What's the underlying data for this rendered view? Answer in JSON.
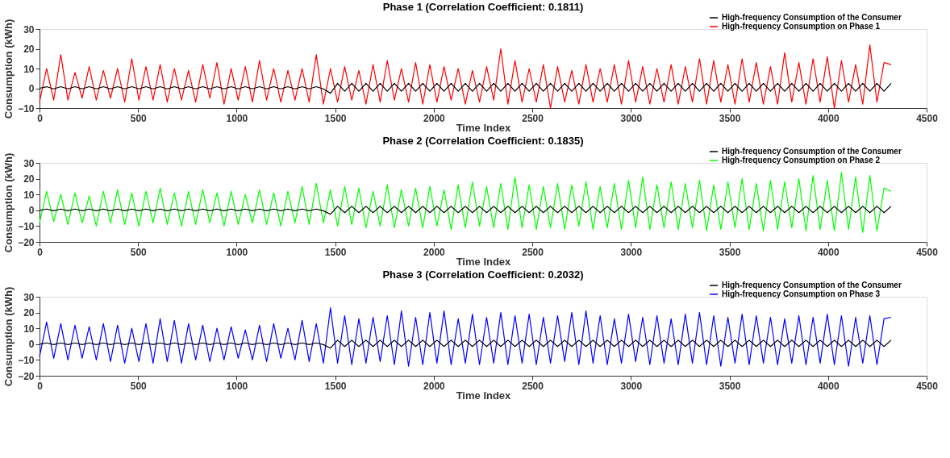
{
  "chart_data": [
    {
      "type": "line",
      "title": "Phase 1 (Correlation Coefficient: 0.1811)",
      "xlabel": "Time Index",
      "ylabel": "Consumption (kWh)",
      "legend": "top right",
      "grid": false,
      "xlim": [
        0,
        4500
      ],
      "xticks": [
        0,
        500,
        1000,
        1500,
        2000,
        2500,
        3000,
        3500,
        4000,
        4500
      ],
      "ylim": [
        -10,
        30
      ],
      "yticks": [
        -10,
        0,
        10,
        20,
        30
      ],
      "x": [
        0,
        36,
        72,
        108,
        144,
        180,
        216,
        252,
        288,
        324,
        360,
        396,
        432,
        468,
        504,
        540,
        576,
        612,
        648,
        684,
        720,
        756,
        792,
        828,
        864,
        900,
        936,
        972,
        1008,
        1044,
        1080,
        1116,
        1152,
        1188,
        1224,
        1260,
        1296,
        1332,
        1368,
        1404,
        1440,
        1476,
        1512,
        1548,
        1584,
        1620,
        1656,
        1692,
        1728,
        1764,
        1800,
        1836,
        1872,
        1908,
        1944,
        1980,
        2016,
        2052,
        2088,
        2124,
        2160,
        2196,
        2232,
        2268,
        2304,
        2340,
        2376,
        2412,
        2448,
        2484,
        2520,
        2556,
        2592,
        2628,
        2664,
        2700,
        2736,
        2772,
        2808,
        2844,
        2880,
        2916,
        2952,
        2988,
        3024,
        3060,
        3096,
        3132,
        3168,
        3204,
        3240,
        3276,
        3312,
        3348,
        3384,
        3420,
        3456,
        3492,
        3528,
        3564,
        3600,
        3636,
        3672,
        3708,
        3744,
        3780,
        3816,
        3852,
        3888,
        3924,
        3960,
        3996,
        4032,
        4068,
        4104,
        4140,
        4176,
        4212,
        4248,
        4284,
        4320
      ],
      "series": [
        {
          "name": "High-frequency Consumption of the Consumer",
          "color": "#000000",
          "values": [
            0,
            0.8,
            -0.3,
            0.8,
            -0.3,
            0.8,
            -0.3,
            0.8,
            -0.3,
            0.8,
            -0.3,
            0.8,
            -0.3,
            0.8,
            -0.3,
            0.8,
            -0.3,
            0.8,
            -0.3,
            0.8,
            -0.3,
            0.8,
            -0.3,
            0.8,
            -0.3,
            0.8,
            -0.3,
            0.8,
            -0.3,
            0.8,
            -0.3,
            0.8,
            -0.3,
            0.8,
            -0.3,
            0.8,
            -0.3,
            0.8,
            -0.3,
            0.8,
            -0.3,
            -2.5,
            2.5,
            -1.5,
            2.5,
            -1.5,
            2.5,
            -1.5,
            2.5,
            -1.5,
            2.5,
            -1.5,
            2.5,
            -1.5,
            2.5,
            -1.5,
            2.5,
            -1.5,
            2.5,
            -1.5,
            2.5,
            -1.5,
            2.5,
            -1.5,
            2.5,
            -1.5,
            2.5,
            -1.5,
            2.5,
            -1.5,
            2.5,
            -1.5,
            2.5,
            -1.5,
            2.5,
            -1.5,
            2.5,
            -1.5,
            2.5,
            -1.5,
            2.5,
            -1.5,
            2.5,
            -1.5,
            2.5,
            -1.5,
            2.5,
            -1.5,
            2.5,
            -1.5,
            2.5,
            -1.5,
            2.5,
            -1.5,
            2.5,
            -1.5,
            2.5,
            -1.5,
            2.5,
            -1.5,
            2.5,
            -1.5,
            2.5,
            -1.5,
            2.5,
            -1.5,
            2.5,
            -1.5,
            2.5,
            -1.5,
            2.5,
            -1.5,
            2.5,
            -1.5,
            2.5,
            -1.5,
            2.5,
            -1.5,
            2.5,
            -1.5,
            2.5
          ]
        },
        {
          "name": "High-frequency Consumption on Phase 1",
          "color": "#ff0000",
          "values": [
            -7,
            10,
            -6,
            17,
            -6,
            8,
            -5,
            11,
            -6,
            9,
            -5,
            10,
            -7,
            15,
            -6,
            11,
            -6,
            12,
            -7,
            10,
            -6,
            9,
            -7,
            12,
            -5,
            13,
            -8,
            10,
            -6,
            11,
            -7,
            14,
            -6,
            10,
            -7,
            9,
            -6,
            10,
            -7,
            17,
            -8,
            10,
            -7,
            11,
            -6,
            9,
            -8,
            12,
            -7,
            14,
            -6,
            10,
            -7,
            13,
            -8,
            12,
            -7,
            11,
            -6,
            10,
            -8,
            9,
            -7,
            11,
            -6,
            20,
            -8,
            14,
            -7,
            10,
            -7,
            12,
            -10,
            11,
            -7,
            9,
            -8,
            12,
            -7,
            10,
            -7,
            12,
            -8,
            14,
            -7,
            11,
            -8,
            10,
            -7,
            12,
            -8,
            11,
            -7,
            15,
            -8,
            14,
            -7,
            12,
            -8,
            15,
            -7,
            13,
            -8,
            11,
            -8,
            18,
            -7,
            13,
            -8,
            15,
            -7,
            16,
            -10,
            14,
            -7,
            12,
            -8,
            22,
            -7,
            13,
            12
          ]
        }
      ]
    },
    {
      "type": "line",
      "title": "Phase 2 (Correlation Coefficient: 0.1835)",
      "xlabel": "Time Index",
      "ylabel": "Consumption (kWh)",
      "legend": "top right",
      "grid": false,
      "xlim": [
        0,
        4500
      ],
      "xticks": [
        0,
        500,
        1000,
        1500,
        2000,
        2500,
        3000,
        3500,
        4000,
        4500
      ],
      "ylim": [
        -20,
        30
      ],
      "yticks": [
        -20,
        -10,
        0,
        10,
        20,
        30
      ],
      "x": [
        0,
        36,
        72,
        108,
        144,
        180,
        216,
        252,
        288,
        324,
        360,
        396,
        432,
        468,
        504,
        540,
        576,
        612,
        648,
        684,
        720,
        756,
        792,
        828,
        864,
        900,
        936,
        972,
        1008,
        1044,
        1080,
        1116,
        1152,
        1188,
        1224,
        1260,
        1296,
        1332,
        1368,
        1404,
        1440,
        1476,
        1512,
        1548,
        1584,
        1620,
        1656,
        1692,
        1728,
        1764,
        1800,
        1836,
        1872,
        1908,
        1944,
        1980,
        2016,
        2052,
        2088,
        2124,
        2160,
        2196,
        2232,
        2268,
        2304,
        2340,
        2376,
        2412,
        2448,
        2484,
        2520,
        2556,
        2592,
        2628,
        2664,
        2700,
        2736,
        2772,
        2808,
        2844,
        2880,
        2916,
        2952,
        2988,
        3024,
        3060,
        3096,
        3132,
        3168,
        3204,
        3240,
        3276,
        3312,
        3348,
        3384,
        3420,
        3456,
        3492,
        3528,
        3564,
        3600,
        3636,
        3672,
        3708,
        3744,
        3780,
        3816,
        3852,
        3888,
        3924,
        3960,
        3996,
        4032,
        4068,
        4104,
        4140,
        4176,
        4212,
        4248,
        4284,
        4320
      ],
      "series": [
        {
          "name": "High-frequency Consumption of the Consumer",
          "color": "#000000",
          "values": [
            0,
            0.8,
            -0.3,
            0.8,
            -0.3,
            0.8,
            -0.3,
            0.8,
            -0.3,
            0.8,
            -0.3,
            0.8,
            -0.3,
            0.8,
            -0.3,
            0.8,
            -0.3,
            0.8,
            -0.3,
            0.8,
            -0.3,
            0.8,
            -0.3,
            0.8,
            -0.3,
            0.8,
            -0.3,
            0.8,
            -0.3,
            0.8,
            -0.3,
            0.8,
            -0.3,
            0.8,
            -0.3,
            0.8,
            -0.3,
            0.8,
            -0.3,
            0.8,
            -0.3,
            -2.5,
            2.5,
            -1.5,
            2.5,
            -1.5,
            2.5,
            -1.5,
            2.5,
            -1.5,
            2.5,
            -1.5,
            2.5,
            -1.5,
            2.5,
            -1.5,
            2.5,
            -1.5,
            2.5,
            -1.5,
            2.5,
            -1.5,
            2.5,
            -1.5,
            2.5,
            -1.5,
            2.5,
            -1.5,
            2.5,
            -1.5,
            2.5,
            -1.5,
            2.5,
            -1.5,
            2.5,
            -1.5,
            2.5,
            -1.5,
            2.5,
            -1.5,
            2.5,
            -1.5,
            2.5,
            -1.5,
            2.5,
            -1.5,
            2.5,
            -1.5,
            2.5,
            -1.5,
            2.5,
            -1.5,
            2.5,
            -1.5,
            2.5,
            -1.5,
            2.5,
            -1.5,
            2.5,
            -1.5,
            2.5,
            -1.5,
            2.5,
            -1.5,
            2.5,
            -1.5,
            2.5,
            -1.5,
            2.5,
            -1.5,
            2.5,
            -1.5,
            2.5,
            -1.5,
            2.5,
            -1.5,
            2.5,
            -1.5,
            2.5,
            -1.5,
            2.5
          ]
        },
        {
          "name": "High-frequency Consumption on Phase 2",
          "color": "#00ff00",
          "values": [
            -8,
            12,
            -7,
            10,
            -9,
            11,
            -8,
            9,
            -10,
            12,
            -8,
            13,
            -9,
            11,
            -10,
            12,
            -8,
            14,
            -9,
            11,
            -10,
            12,
            -9,
            13,
            -8,
            11,
            -10,
            12,
            -9,
            10,
            -8,
            13,
            -9,
            11,
            -10,
            12,
            -8,
            15,
            -9,
            17,
            -8,
            13,
            -10,
            15,
            -9,
            14,
            -11,
            12,
            -10,
            16,
            -11,
            13,
            -10,
            14,
            -11,
            15,
            -10,
            13,
            -12,
            16,
            -11,
            18,
            -10,
            15,
            -11,
            17,
            -12,
            21,
            -11,
            16,
            -12,
            15,
            -11,
            17,
            -12,
            16,
            -10,
            18,
            -12,
            15,
            -11,
            17,
            -12,
            19,
            -11,
            21,
            -12,
            16,
            -11,
            18,
            -12,
            17,
            -11,
            19,
            -13,
            16,
            -12,
            18,
            -11,
            20,
            -12,
            17,
            -13,
            19,
            -12,
            18,
            -11,
            20,
            -13,
            22,
            -12,
            19,
            -13,
            24,
            -12,
            21,
            -14,
            22,
            -13,
            14,
            12
          ]
        }
      ]
    },
    {
      "type": "line",
      "title": "Phase 3 (Correlation Coefficient: 0.2032)",
      "xlabel": "Time Index",
      "ylabel": "Consumption (kWh)",
      "legend": "top right",
      "grid": false,
      "xlim": [
        0,
        4500
      ],
      "xticks": [
        0,
        500,
        1000,
        1500,
        2000,
        2500,
        3000,
        3500,
        4000,
        4500
      ],
      "ylim": [
        -20,
        30
      ],
      "yticks": [
        -20,
        -10,
        0,
        10,
        20,
        30
      ],
      "x": [
        0,
        36,
        72,
        108,
        144,
        180,
        216,
        252,
        288,
        324,
        360,
        396,
        432,
        468,
        504,
        540,
        576,
        612,
        648,
        684,
        720,
        756,
        792,
        828,
        864,
        900,
        936,
        972,
        1008,
        1044,
        1080,
        1116,
        1152,
        1188,
        1224,
        1260,
        1296,
        1332,
        1368,
        1404,
        1440,
        1476,
        1512,
        1548,
        1584,
        1620,
        1656,
        1692,
        1728,
        1764,
        1800,
        1836,
        1872,
        1908,
        1944,
        1980,
        2016,
        2052,
        2088,
        2124,
        2160,
        2196,
        2232,
        2268,
        2304,
        2340,
        2376,
        2412,
        2448,
        2484,
        2520,
        2556,
        2592,
        2628,
        2664,
        2700,
        2736,
        2772,
        2808,
        2844,
        2880,
        2916,
        2952,
        2988,
        3024,
        3060,
        3096,
        3132,
        3168,
        3204,
        3240,
        3276,
        3312,
        3348,
        3384,
        3420,
        3456,
        3492,
        3528,
        3564,
        3600,
        3636,
        3672,
        3708,
        3744,
        3780,
        3816,
        3852,
        3888,
        3924,
        3960,
        3996,
        4032,
        4068,
        4104,
        4140,
        4176,
        4212,
        4248,
        4284,
        4320
      ],
      "series": [
        {
          "name": "High-frequency Consumption of the Consumer",
          "color": "#000000",
          "values": [
            0,
            0.8,
            -0.3,
            0.8,
            -0.3,
            0.8,
            -0.3,
            0.8,
            -0.3,
            0.8,
            -0.3,
            0.8,
            -0.3,
            0.8,
            -0.3,
            0.8,
            -0.3,
            0.8,
            -0.3,
            0.8,
            -0.3,
            0.8,
            -0.3,
            0.8,
            -0.3,
            0.8,
            -0.3,
            0.8,
            -0.3,
            0.8,
            -0.3,
            0.8,
            -0.3,
            0.8,
            -0.3,
            0.8,
            -0.3,
            0.8,
            -0.3,
            0.8,
            -0.3,
            -2.5,
            2.5,
            -1.5,
            2.5,
            -1.5,
            2.5,
            -1.5,
            2.5,
            -1.5,
            2.5,
            -1.5,
            2.5,
            -1.5,
            2.5,
            -1.5,
            2.5,
            -1.5,
            2.5,
            -1.5,
            2.5,
            -1.5,
            2.5,
            -1.5,
            2.5,
            -1.5,
            2.5,
            -1.5,
            2.5,
            -1.5,
            2.5,
            -1.5,
            2.5,
            -1.5,
            2.5,
            -1.5,
            2.5,
            -1.5,
            2.5,
            -1.5,
            2.5,
            -1.5,
            2.5,
            -1.5,
            2.5,
            -1.5,
            2.5,
            -1.5,
            2.5,
            -1.5,
            2.5,
            -1.5,
            2.5,
            -1.5,
            2.5,
            -1.5,
            2.5,
            -1.5,
            2.5,
            -1.5,
            2.5,
            -1.5,
            2.5,
            -1.5,
            2.5,
            -1.5,
            2.5,
            -1.5,
            2.5,
            -1.5,
            2.5,
            -1.5,
            2.5,
            -1.5,
            2.5,
            -1.5,
            2.5,
            -1.5,
            2.5,
            -1.5,
            2.5
          ]
        },
        {
          "name": "High-frequency Consumption on Phase 3",
          "color": "#0000ff",
          "values": [
            -8,
            14,
            -9,
            13,
            -10,
            12,
            -9,
            11,
            -10,
            13,
            -11,
            12,
            -12,
            10,
            -11,
            13,
            -12,
            16,
            -11,
            15,
            -12,
            13,
            -10,
            12,
            -11,
            10,
            -10,
            11,
            -9,
            9,
            -10,
            12,
            -11,
            13,
            -9,
            10,
            -10,
            15,
            -11,
            13,
            -12,
            23,
            -12,
            18,
            -13,
            16,
            -12,
            17,
            -11,
            18,
            -13,
            21,
            -14,
            17,
            -13,
            20,
            -12,
            21,
            -13,
            16,
            -12,
            19,
            -13,
            17,
            -12,
            20,
            -13,
            18,
            -12,
            19,
            -13,
            17,
            -12,
            18,
            -11,
            20,
            -13,
            21,
            -12,
            18,
            -13,
            16,
            -12,
            19,
            -11,
            17,
            -13,
            18,
            -12,
            16,
            -13,
            19,
            -12,
            20,
            -13,
            18,
            -14,
            17,
            -12,
            19,
            -13,
            18,
            -12,
            17,
            -13,
            16,
            -12,
            18,
            -13,
            17,
            -12,
            19,
            -13,
            18,
            -14,
            17,
            -12,
            18,
            -13,
            16,
            17
          ]
        }
      ]
    }
  ]
}
